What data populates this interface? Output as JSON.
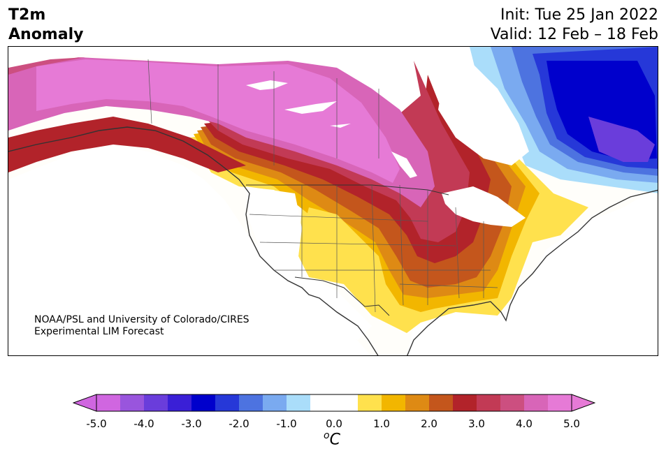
{
  "title": {
    "line1": "T2m",
    "line2": "Anomaly"
  },
  "dates": {
    "init": "Init: Tue 25 Jan 2022",
    "valid": "Valid: 12 Feb – 18 Feb"
  },
  "credit": {
    "line1": "NOAA/PSL and University of Colorado/CIRES",
    "line2": "Experimental LIM Forecast"
  },
  "colorbar": {
    "ticks": [
      "-5.0",
      "-4.0",
      "-3.0",
      "-2.0",
      "-1.0",
      "0.0",
      "1.0",
      "2.0",
      "3.0",
      "4.0",
      "5.0"
    ],
    "unit": "C",
    "unit_prefix": "o",
    "colors": [
      "#d066e0",
      "#9955dd",
      "#6a3ddb",
      "#3a1fd6",
      "#0000cc",
      "#2638d8",
      "#4d73e0",
      "#7aaaf0",
      "#aaddfa",
      "#ffffff",
      "#ffffff",
      "#ffe14d",
      "#f2b600",
      "#de8a14",
      "#c4561c",
      "#b2232a",
      "#c23a55",
      "#cc4f80",
      "#d865b8",
      "#e67ad6"
    ]
  },
  "legend_colors": {
    "extreme_warm": "#e67ad6",
    "warm_4": "#cc4f80",
    "warm_3": "#b2232a",
    "warm_2": "#c4561c",
    "warm_1_5": "#de8a14",
    "warm_1": "#f2b600",
    "warm_0_5": "#ffe14d",
    "cold_1": "#aaddfa",
    "cold_2": "#4d73e0",
    "cold_3": "#0000cc",
    "cold_4": "#6a3ddb"
  }
}
